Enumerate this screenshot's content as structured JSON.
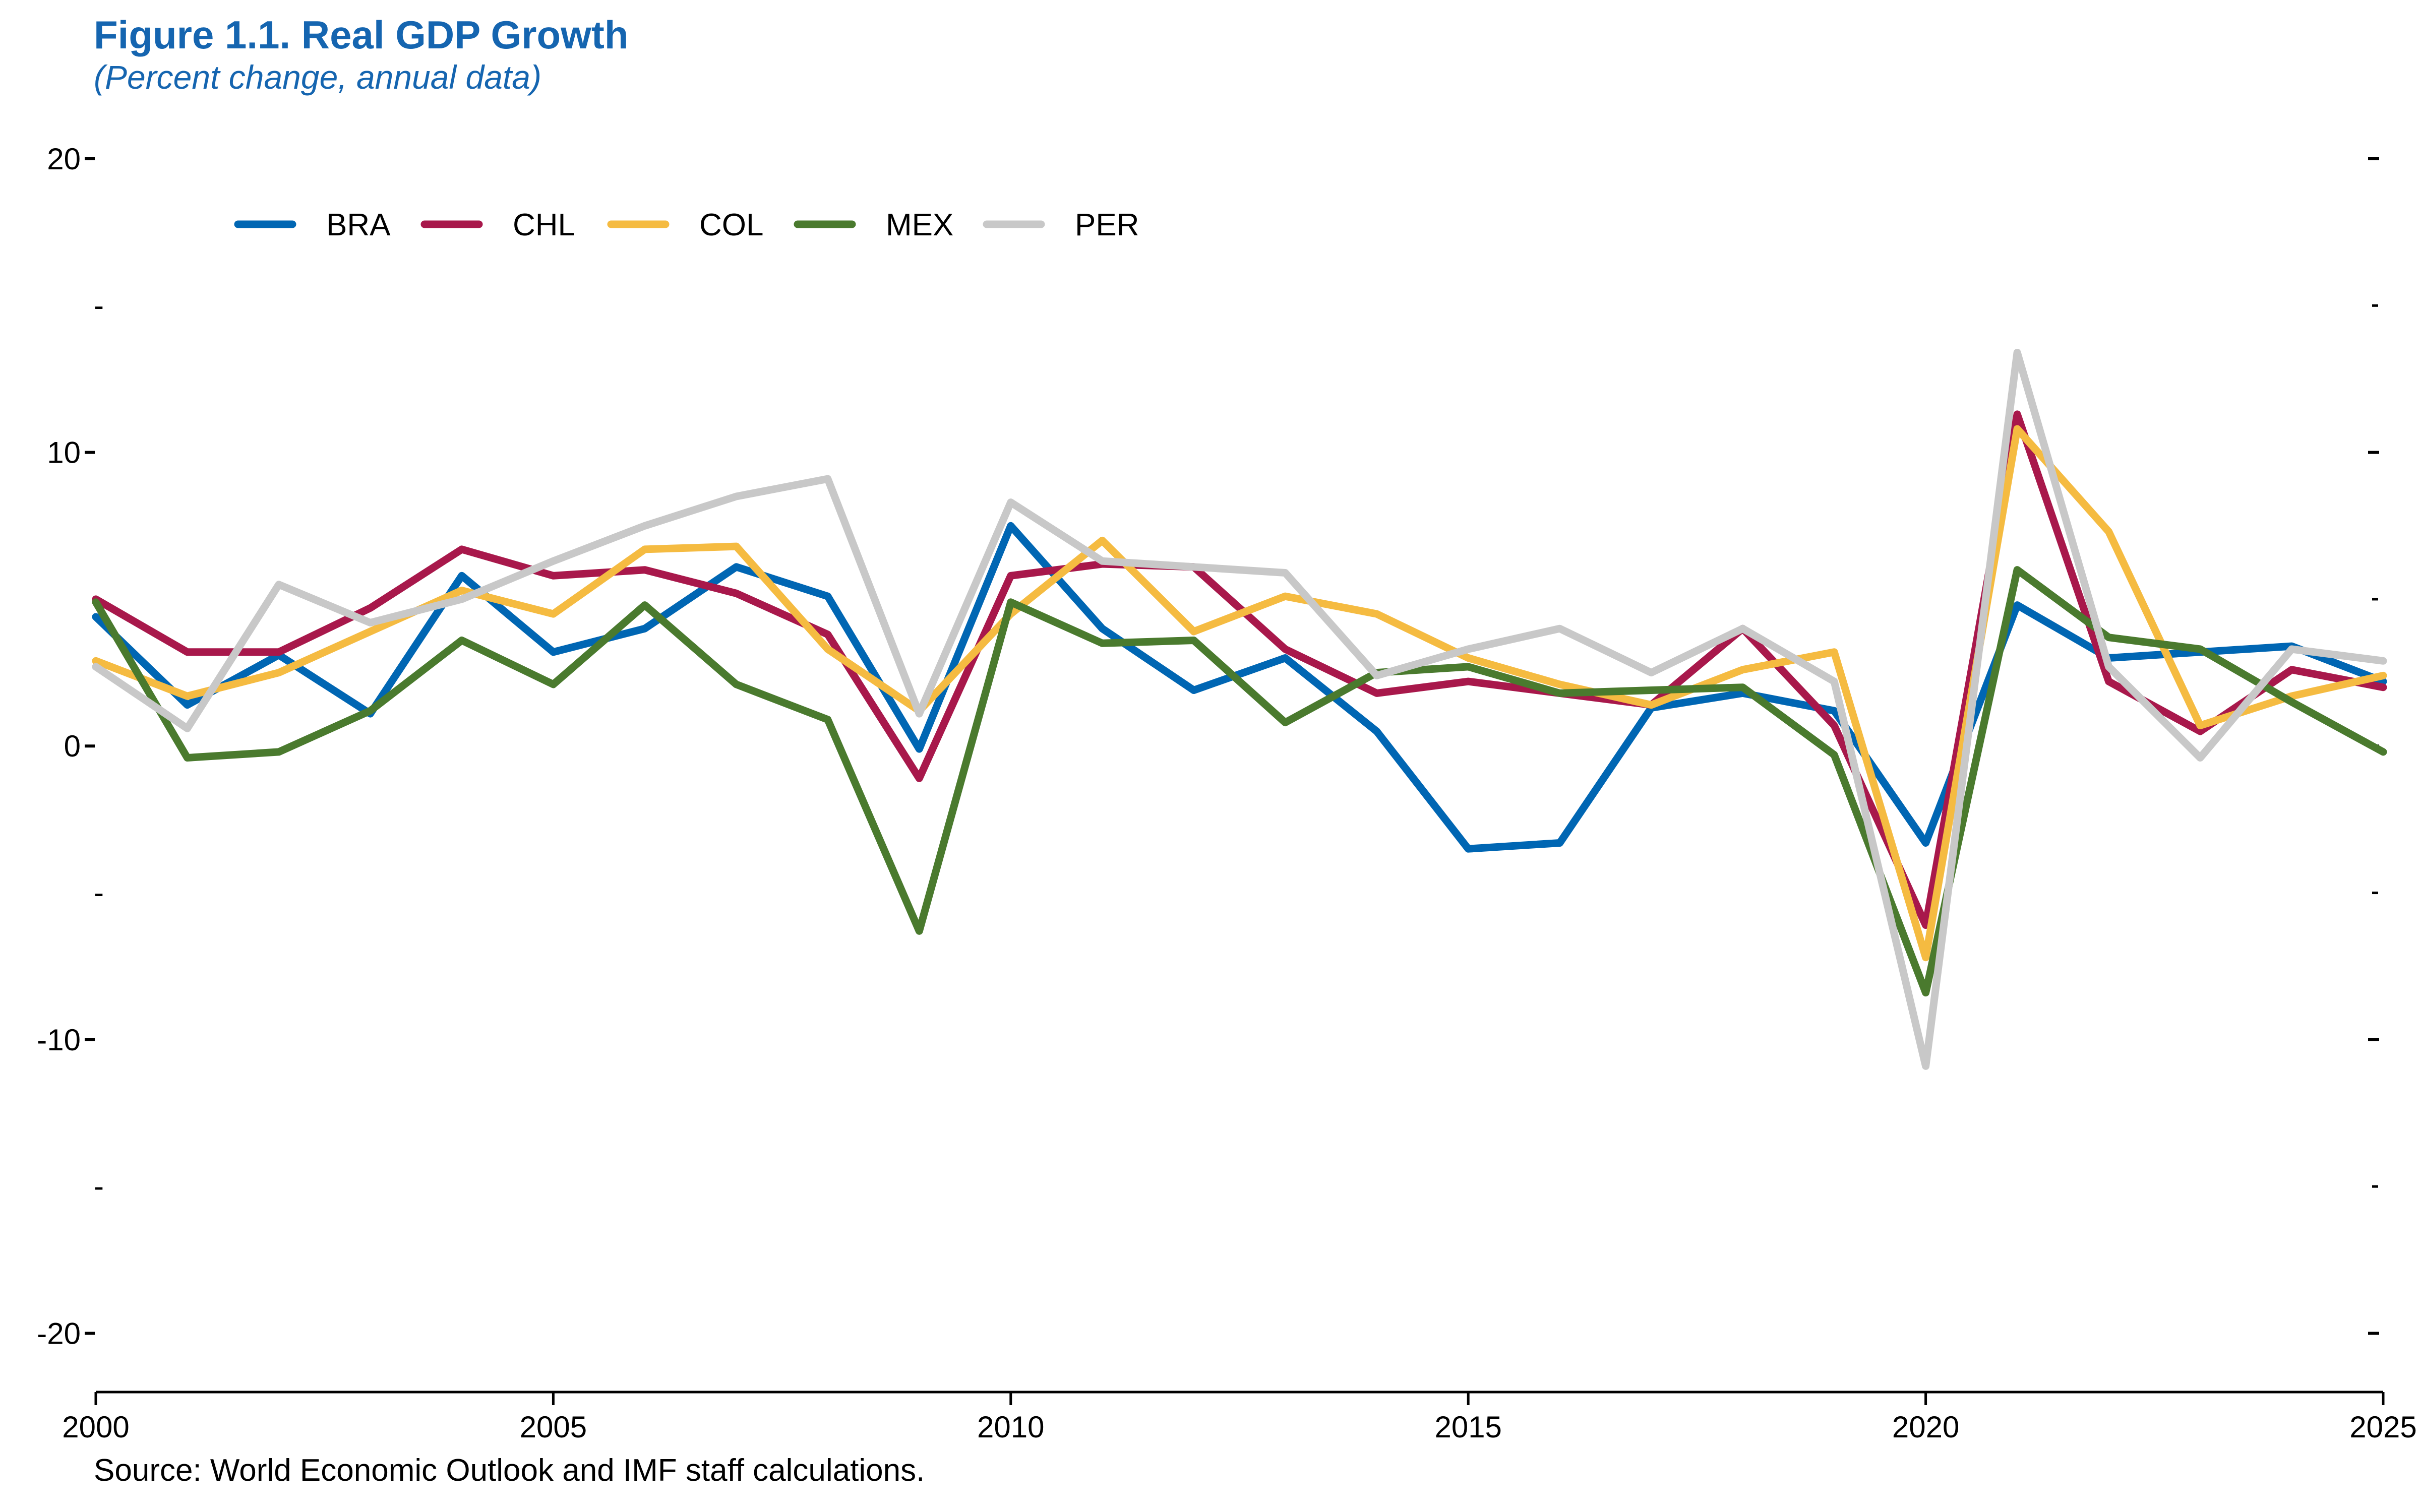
{
  "chart_data": {
    "type": "line",
    "title": "Figure 1.1. Real GDP Growth",
    "subtitle": "(Percent change, annual data)",
    "source": "Source: World Economic Outlook and IMF staff calculations.",
    "x": [
      2000,
      2001,
      2002,
      2003,
      2004,
      2005,
      2006,
      2007,
      2008,
      2009,
      2010,
      2011,
      2012,
      2013,
      2014,
      2015,
      2016,
      2017,
      2018,
      2019,
      2020,
      2021,
      2022,
      2023,
      2024,
      2025
    ],
    "xlim": [
      2000,
      2025
    ],
    "ylim": [
      -22,
      20
    ],
    "x_ticks": [
      2000,
      2005,
      2010,
      2015,
      2020,
      2025
    ],
    "x_tick_labels": [
      "2000",
      "2005",
      "2010",
      "2015",
      "2020",
      "2025"
    ],
    "y_ticks_major": [
      20,
      10,
      0,
      -10,
      -20
    ],
    "y_tick_labels": [
      "20",
      "10",
      "0",
      "-10",
      "-20"
    ],
    "y_ticks_minor": [
      15,
      5,
      -5,
      -15
    ],
    "y_minor_label": "-",
    "grid": false,
    "legend_position": "top-left",
    "series": [
      {
        "name": "BRA",
        "color": "#0066b3",
        "values": [
          4.4,
          1.4,
          3.1,
          1.1,
          5.8,
          3.2,
          4.0,
          6.1,
          5.1,
          -0.1,
          7.5,
          4.0,
          1.9,
          3.0,
          0.5,
          -3.5,
          -3.3,
          1.3,
          1.8,
          1.2,
          -3.3,
          4.8,
          3.0,
          3.2,
          3.4,
          2.2
        ]
      },
      {
        "name": "CHL",
        "color": "#a8184b",
        "values": [
          5.0,
          3.2,
          3.2,
          4.7,
          6.7,
          5.8,
          6.0,
          5.2,
          3.8,
          -1.1,
          5.8,
          6.2,
          6.1,
          3.3,
          1.8,
          2.2,
          1.8,
          1.4,
          4.0,
          0.7,
          -6.1,
          11.3,
          2.2,
          0.5,
          2.6,
          2.0
        ]
      },
      {
        "name": "COL",
        "color": "#f5bb41",
        "values": [
          2.9,
          1.7,
          2.5,
          3.9,
          5.3,
          4.5,
          6.7,
          6.8,
          3.3,
          1.2,
          4.5,
          7.0,
          3.9,
          5.1,
          4.5,
          3.0,
          2.1,
          1.4,
          2.6,
          3.2,
          -7.2,
          10.8,
          7.3,
          0.7,
          1.7,
          2.4
        ]
      },
      {
        "name": "MEX",
        "color": "#4a7a2e",
        "values": [
          4.9,
          -0.4,
          -0.2,
          1.2,
          3.6,
          2.1,
          4.8,
          2.1,
          0.9,
          -6.3,
          4.9,
          3.5,
          3.6,
          0.8,
          2.5,
          2.7,
          1.8,
          1.9,
          2.0,
          -0.3,
          -8.4,
          6.0,
          3.7,
          3.3,
          1.5,
          -0.2
        ]
      },
      {
        "name": "PER",
        "color": "#c8c8c8",
        "values": [
          2.7,
          0.6,
          5.5,
          4.2,
          5.0,
          6.3,
          7.5,
          8.5,
          9.1,
          1.1,
          8.3,
          6.3,
          6.1,
          5.9,
          2.4,
          3.3,
          4.0,
          2.5,
          4.0,
          2.2,
          -10.9,
          13.4,
          2.7,
          -0.4,
          3.3,
          2.9
        ]
      }
    ]
  }
}
